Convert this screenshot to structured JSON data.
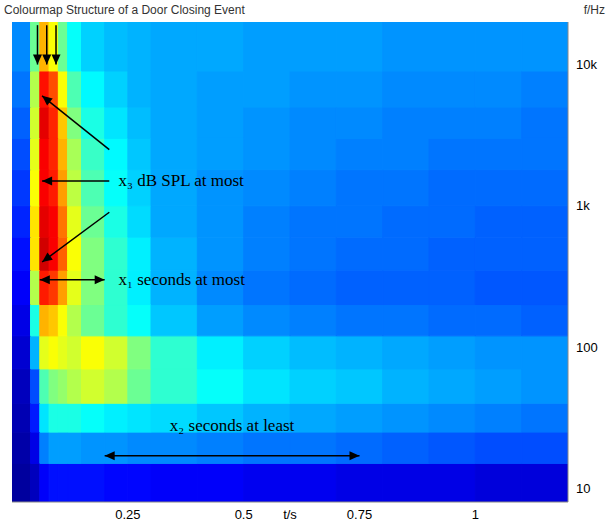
{
  "chart_data": {
    "type": "heatmap",
    "title": "Colourmap Structure of a Door Closing Event",
    "x_label": "t/s",
    "y_label": "f/Hz",
    "log": "y",
    "grid": false,
    "xlim": [
      0,
      1.2
    ],
    "ylim": [
      8,
      20000
    ],
    "xticks": [
      0.25,
      0.5,
      0.75,
      1
    ],
    "yticks": [
      10,
      100,
      {
        "value": 1000,
        "label": "1k"
      },
      {
        "value": 10000,
        "label": "10k"
      }
    ],
    "x_edges": [
      0,
      0.04,
      0.06,
      0.08,
      0.1,
      0.12,
      0.15,
      0.2,
      0.25,
      0.3,
      0.4,
      0.5,
      0.6,
      0.7,
      0.8,
      0.9,
      1.0,
      1.1,
      1.2
    ],
    "y_edges": [
      8,
      15,
      25,
      40,
      70,
      120,
      200,
      350,
      600,
      1000,
      1800,
      3000,
      5000,
      9000,
      20000
    ],
    "color_range": [
      0,
      100
    ],
    "cells": [
      [
        3,
        6,
        12,
        14,
        14,
        14,
        14,
        13,
        13,
        12,
        12,
        11,
        11,
        10,
        10,
        10,
        9,
        9
      ],
      [
        4,
        10,
        25,
        28,
        28,
        28,
        27,
        27,
        26,
        26,
        25,
        24,
        24,
        23,
        22,
        21,
        20,
        20
      ],
      [
        5,
        15,
        35,
        40,
        40,
        40,
        38,
        36,
        35,
        34,
        32,
        30,
        29,
        28,
        27,
        26,
        25,
        24
      ],
      [
        6,
        20,
        45,
        50,
        52,
        55,
        58,
        55,
        48,
        42,
        38,
        35,
        33,
        32,
        30,
        29,
        28,
        27
      ],
      [
        8,
        30,
        60,
        62,
        60,
        58,
        62,
        58,
        50,
        42,
        36,
        33,
        31,
        30,
        29,
        28,
        27,
        27
      ],
      [
        10,
        40,
        70,
        68,
        62,
        55,
        48,
        42,
        38,
        32,
        28,
        26,
        25,
        24,
        24,
        23,
        23,
        22
      ],
      [
        12,
        55,
        85,
        82,
        72,
        60,
        50,
        42,
        36,
        30,
        26,
        24,
        23,
        22,
        22,
        22,
        21,
        21
      ],
      [
        14,
        65,
        92,
        88,
        78,
        62,
        50,
        42,
        36,
        30,
        27,
        25,
        24,
        23,
        23,
        22,
        22,
        22
      ],
      [
        16,
        65,
        90,
        88,
        76,
        60,
        48,
        40,
        34,
        29,
        27,
        25,
        24,
        24,
        23,
        23,
        22,
        22
      ],
      [
        18,
        62,
        88,
        85,
        72,
        56,
        45,
        38,
        33,
        29,
        27,
        26,
        25,
        24,
        24,
        23,
        23,
        23
      ],
      [
        20,
        60,
        88,
        84,
        70,
        54,
        43,
        37,
        32,
        29,
        28,
        27,
        26,
        25,
        25,
        24,
        24,
        24
      ],
      [
        22,
        58,
        90,
        84,
        68,
        50,
        40,
        35,
        31,
        29,
        28,
        27,
        26,
        26,
        25,
        25,
        25,
        24
      ],
      [
        24,
        55,
        86,
        80,
        62,
        45,
        37,
        33,
        30,
        29,
        28,
        28,
        27,
        27,
        26,
        26,
        26,
        25
      ],
      [
        26,
        48,
        70,
        62,
        48,
        38,
        33,
        31,
        30,
        29,
        29,
        28,
        28,
        28,
        27,
        27,
        27,
        27
      ]
    ],
    "markers": {
      "x": [
        0.055,
        0.075,
        0.095
      ],
      "y_from": 19000,
      "y_to": 10000
    },
    "annotations": [
      {
        "text": "x₃ dB SPL at most",
        "x": 0.23,
        "y": 1500,
        "arrows_from": [
          [
            0.21,
            2500
          ],
          [
            0.21,
            1500
          ],
          [
            0.21,
            900
          ]
        ],
        "arrows_to": [
          [
            0.065,
            6000
          ],
          [
            0.065,
            1500
          ],
          [
            0.065,
            400
          ]
        ]
      },
      {
        "text": "x₁ seconds at most",
        "x": 0.23,
        "y": 300,
        "span": [
          0.06,
          0.2
        ],
        "span_y": 300
      },
      {
        "text": "x₂ seconds at least",
        "x": 0.475,
        "y": 28,
        "span": [
          0.2,
          0.75
        ],
        "span_y": 17
      }
    ]
  }
}
